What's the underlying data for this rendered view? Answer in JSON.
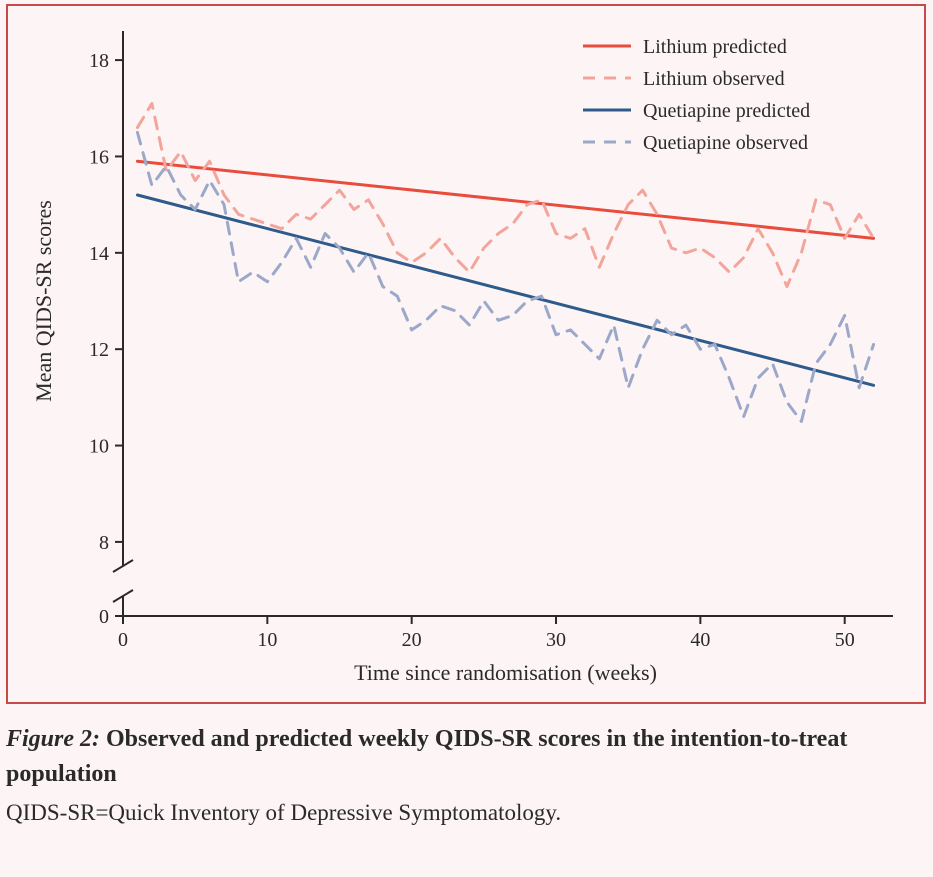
{
  "chart": {
    "type": "line",
    "background_color": "#fdf5f5",
    "border_color": "#c94848",
    "xlabel": "Time since randomisation (weeks)",
    "ylabel": "Mean QIDS-SR scores",
    "label_fontsize": 22,
    "tick_fontsize": 20,
    "axis_color": "#2a2a2a",
    "xlim": [
      0,
      53
    ],
    "ylim_upper": [
      7.5,
      18.5
    ],
    "ytick_values": [
      0,
      8,
      10,
      12,
      14,
      16,
      18
    ],
    "xtick_values": [
      0,
      10,
      20,
      30,
      40,
      50
    ],
    "axis_break": true,
    "legend": {
      "position": "top-right",
      "fontsize": 20,
      "items": [
        {
          "label": "Lithium predicted",
          "color": "#e84c3d",
          "dash": "solid",
          "width": 3
        },
        {
          "label": "Lithium observed",
          "color": "#f3a59b",
          "dash": "dashed",
          "width": 3
        },
        {
          "label": "Quetiapine predicted",
          "color": "#2e5b8b",
          "dash": "solid",
          "width": 3
        },
        {
          "label": "Quetiapine observed",
          "color": "#9ba8c9",
          "dash": "dashed",
          "width": 3
        }
      ]
    },
    "series": [
      {
        "name": "lithium_predicted",
        "color": "#e84c3d",
        "dash": "solid",
        "width": 3,
        "x": [
          1,
          52
        ],
        "y": [
          15.9,
          14.3
        ]
      },
      {
        "name": "quetiapine_predicted",
        "color": "#2e5b8b",
        "dash": "solid",
        "width": 3,
        "x": [
          1,
          52
        ],
        "y": [
          15.2,
          11.25
        ]
      },
      {
        "name": "lithium_observed",
        "color": "#f3a59b",
        "dash": "dashed",
        "width": 3,
        "x": [
          1,
          2,
          3,
          4,
          5,
          6,
          7,
          8,
          9,
          10,
          11,
          12,
          13,
          14,
          15,
          16,
          17,
          18,
          19,
          20,
          21,
          22,
          23,
          24,
          25,
          26,
          27,
          28,
          29,
          30,
          31,
          32,
          33,
          34,
          35,
          36,
          37,
          38,
          39,
          40,
          41,
          42,
          43,
          44,
          45,
          46,
          47,
          48,
          49,
          50,
          51,
          52
        ],
        "y": [
          16.6,
          17.1,
          15.7,
          16.1,
          15.5,
          15.9,
          15.2,
          14.8,
          14.7,
          14.6,
          14.5,
          14.8,
          14.7,
          15.0,
          15.3,
          14.9,
          15.1,
          14.6,
          14.0,
          13.8,
          14.0,
          14.3,
          13.9,
          13.6,
          14.1,
          14.4,
          14.6,
          15.0,
          15.1,
          14.4,
          14.3,
          14.5,
          13.7,
          14.4,
          15.0,
          15.3,
          14.8,
          14.1,
          14.0,
          14.1,
          13.9,
          13.6,
          13.9,
          14.5,
          14.0,
          13.3,
          14.0,
          15.1,
          15.0,
          14.3,
          14.8,
          14.3
        ]
      },
      {
        "name": "quetiapine_observed",
        "color": "#9ba8c9",
        "dash": "dashed",
        "width": 3,
        "x": [
          1,
          2,
          3,
          4,
          5,
          6,
          7,
          8,
          9,
          10,
          11,
          12,
          13,
          14,
          15,
          16,
          17,
          18,
          19,
          20,
          21,
          22,
          23,
          24,
          25,
          26,
          27,
          28,
          29,
          30,
          31,
          32,
          33,
          34,
          35,
          36,
          37,
          38,
          39,
          40,
          41,
          42,
          43,
          44,
          45,
          46,
          47,
          48,
          49,
          50,
          51,
          52
        ],
        "y": [
          16.5,
          15.4,
          15.8,
          15.2,
          14.9,
          15.5,
          15.0,
          13.4,
          13.6,
          13.4,
          13.8,
          14.3,
          13.7,
          14.4,
          14.1,
          13.6,
          14.0,
          13.3,
          13.1,
          12.4,
          12.6,
          12.9,
          12.8,
          12.5,
          13.0,
          12.6,
          12.7,
          13.0,
          13.1,
          12.3,
          12.4,
          12.1,
          11.8,
          12.5,
          11.2,
          12.0,
          12.6,
          12.3,
          12.5,
          12.0,
          12.1,
          11.4,
          10.6,
          11.4,
          11.7,
          10.9,
          10.5,
          11.7,
          12.1,
          12.7,
          11.2,
          12.1
        ]
      }
    ]
  },
  "caption": {
    "fig_label": "Figure 2:",
    "title": " Observed and predicted weekly QIDS-SR scores in the intention-to-treat population",
    "sub": "QIDS-SR=Quick Inventory of Depressive Symptomatology."
  }
}
